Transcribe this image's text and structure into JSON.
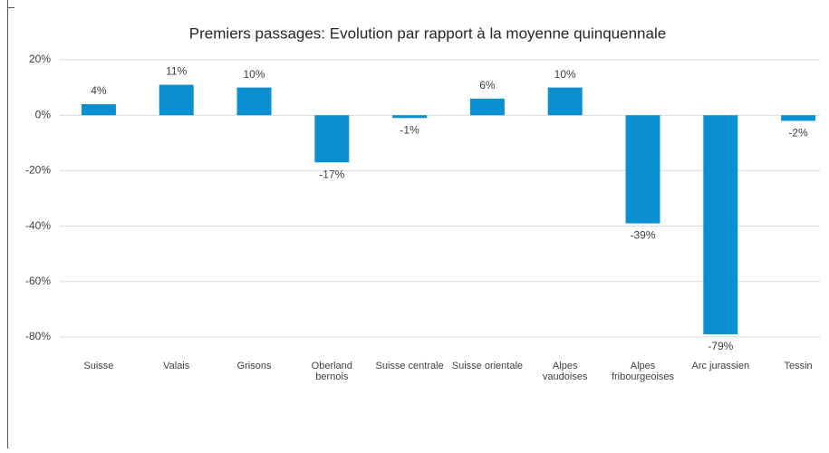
{
  "chart_data": {
    "type": "bar",
    "title": "Premiers passages: Evolution par rapport à la moyenne quinquennale",
    "categories": [
      "Suisse",
      "Valais",
      "Grisons",
      "Oberland\nbernois",
      "Suisse centrale",
      "Suisse orientale",
      "Alpes\nvaudoises",
      "Alpes\nfribourgeoises",
      "Arc jurassien",
      "Tessin"
    ],
    "values": [
      4,
      11,
      10,
      -17,
      -1,
      6,
      10,
      -39,
      -79,
      -2
    ],
    "value_labels": [
      "4%",
      "11%",
      "10%",
      "-17%",
      "-1%",
      "6%",
      "10%",
      "-39%",
      "-79%",
      "-2%"
    ],
    "color": "#0a8fd0",
    "ylim": [
      -80,
      20
    ],
    "yticks": [
      {
        "value": -80,
        "label": "-80%"
      },
      {
        "value": -60,
        "label": "-60%"
      },
      {
        "value": -40,
        "label": "-40%"
      },
      {
        "value": -20,
        "label": "-20%"
      },
      {
        "value": 0,
        "label": "0%"
      },
      {
        "value": 20,
        "label": "20%"
      }
    ],
    "grid": true
  }
}
